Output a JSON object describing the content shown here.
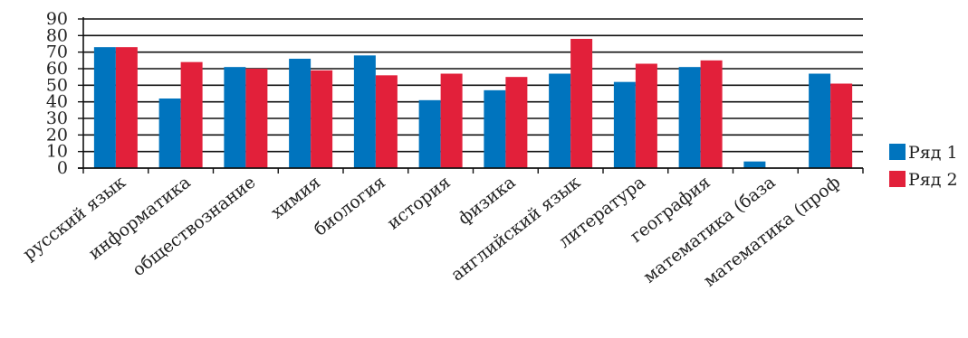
{
  "chart_data": {
    "type": "bar",
    "categories": [
      "русский язык",
      "информатика",
      "обществознание",
      "химия",
      "биология",
      "история",
      "физика",
      "английский язык",
      "литература",
      "география",
      "математика (база",
      "математика (проф"
    ],
    "series": [
      {
        "name": "Ряд 1",
        "color": "#0074be",
        "values": [
          73,
          42,
          61,
          66,
          68,
          41,
          47,
          57,
          52,
          61,
          4,
          57
        ]
      },
      {
        "name": "Ряд 2",
        "color": "#e2203a",
        "values": [
          73,
          64,
          60,
          59,
          56,
          57,
          55,
          78,
          63,
          65,
          0,
          51
        ]
      }
    ],
    "ylim": [
      0,
      90
    ],
    "yticks": [
      "0",
      "10",
      "20",
      "30",
      "40",
      "50",
      "60",
      "70",
      "80",
      "90"
    ],
    "grid": true,
    "legend_position": "right"
  }
}
